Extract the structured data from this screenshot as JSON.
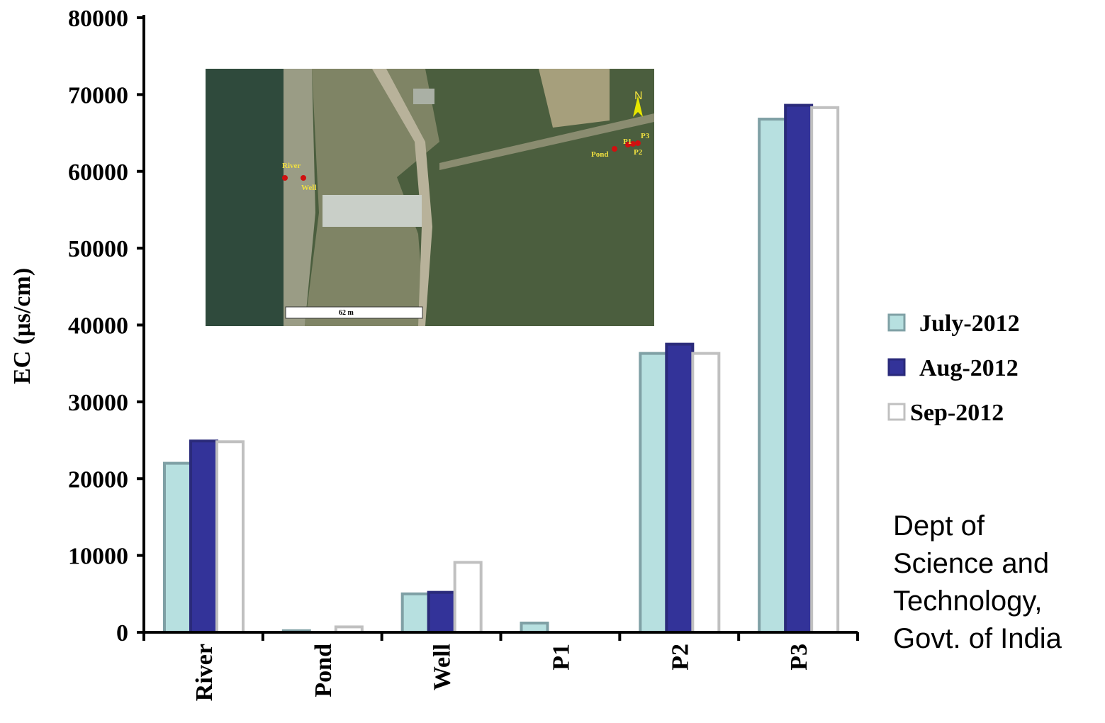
{
  "chart_data": {
    "type": "bar",
    "y_label": "EC (µs/cm)",
    "categories": [
      "River",
      "Pond",
      "Well",
      "P1",
      "P2",
      "P3"
    ],
    "series": [
      {
        "name": "July-2012",
        "color": "#b7e0e0",
        "edge": "#7fa0a5",
        "values": [
          22000,
          200,
          5000,
          1200,
          36300,
          66800
        ]
      },
      {
        "name": "Aug-2012",
        "color": "#333399",
        "edge": "#2a2a7a",
        "values": [
          24900,
          0,
          5200,
          0,
          37500,
          68600
        ]
      },
      {
        "name": "Sep-2012",
        "color": "#ffffff",
        "edge": "#c0c0c0",
        "values": [
          24800,
          700,
          9100,
          0,
          36300,
          68300
        ]
      }
    ],
    "ylim": [
      0,
      80000
    ],
    "yticks": [
      0,
      10000,
      20000,
      30000,
      40000,
      50000,
      60000,
      70000,
      80000
    ],
    "legend": "right",
    "annotation": [
      "Dept of",
      "Science and",
      "Technology,",
      "Govt. of India"
    ],
    "map_labels": {
      "river": "River",
      "well": "Well",
      "pond": "Pond",
      "p1": "P1",
      "p2": "P2",
      "p3": "P3",
      "north": "N",
      "scale": "62 m"
    }
  }
}
